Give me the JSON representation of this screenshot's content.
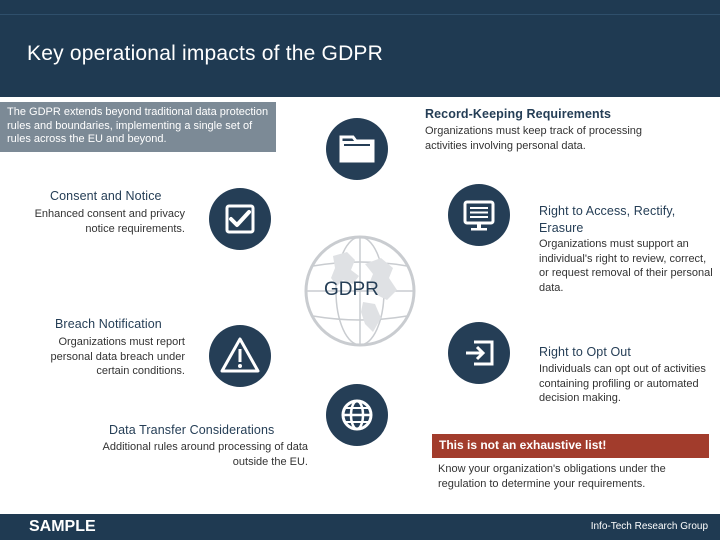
{
  "header": {
    "title": "Key operational impacts of the GDPR"
  },
  "intro": {
    "text": "The GDPR extends beyond traditional data protection rules and boundaries, implementing a single set of rules across the EU and beyond."
  },
  "center": {
    "label": "GDPR"
  },
  "items": {
    "record_keeping": {
      "heading": "Record-Keeping Requirements",
      "body": "Organizations must keep track of processing activities involving personal data.",
      "icon": "folder-icon"
    },
    "consent": {
      "heading": "Consent and Notice",
      "body": "Enhanced consent and privacy notice requirements.",
      "icon": "checkbox-icon"
    },
    "access": {
      "heading": "Right to Access, Rectify, Erasure",
      "body": "Organizations must support an individual's right to review, correct, or request removal of their personal data.",
      "icon": "monitor-icon"
    },
    "breach": {
      "heading": "Breach Notification",
      "body": "Organizations must report personal data breach under certain conditions.",
      "icon": "warning-icon"
    },
    "opt_out": {
      "heading": "Right to Opt Out",
      "body": "Individuals can opt out of activities containing profiling or automated decision making.",
      "icon": "exit-icon"
    },
    "transfer": {
      "heading": "Data Transfer Considerations",
      "body": "Additional rules around processing of data outside the EU.",
      "icon": "globe-icon"
    }
  },
  "note": {
    "banner": "This is not an exhaustive list!",
    "text": "Know your organization's obligations under the regulation to determine your requirements."
  },
  "footer": {
    "sample": "SAMPLE",
    "brand": "Info-Tech Research Group"
  },
  "colors": {
    "navy": "#253e56",
    "header": "#1f3a52",
    "intro_bg": "#7c8a96",
    "banner": "#a23c2c"
  }
}
